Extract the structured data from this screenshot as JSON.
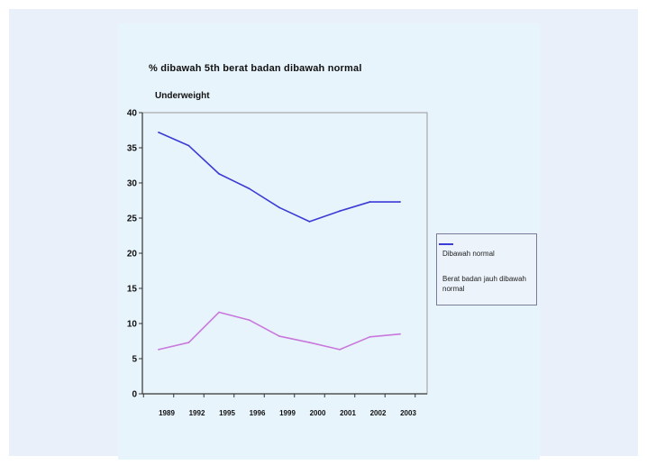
{
  "chart_data": {
    "type": "line",
    "title": "% dibawah 5th berat badan dibawah normal",
    "ylabel": "Underweight",
    "xlabel": "",
    "categories": [
      "1989",
      "1992",
      "1995",
      "1996",
      "1999",
      "2000",
      "2001",
      "2002",
      "2003"
    ],
    "ylim": [
      0,
      40
    ],
    "yticks": [
      0,
      5,
      10,
      15,
      20,
      25,
      30,
      35,
      40
    ],
    "grid": false,
    "legend_position": "right",
    "series": [
      {
        "name": "Dibawah normal",
        "color": "#3b3bd6",
        "x": [
          1,
          2,
          3,
          4,
          5,
          6,
          7,
          8,
          9
        ],
        "values": [
          37.2,
          35.3,
          31.3,
          29.2,
          26.5,
          24.5,
          26.0,
          27.3,
          27.3
        ]
      },
      {
        "name": "Berat badan jauh dibawah normal",
        "color": "#c878dc",
        "x": [
          1,
          2,
          3,
          4,
          5,
          6,
          7,
          8,
          9
        ],
        "values": [
          6.3,
          7.3,
          11.6,
          10.5,
          8.2,
          7.3,
          6.3,
          8.1,
          8.5
        ]
      }
    ]
  },
  "legend": {
    "items": [
      {
        "label": "Dibawah normal",
        "color": "#3b3bd6"
      },
      {
        "label": "Berat badan jauh dibawah normal",
        "color": "#c878dc"
      }
    ]
  }
}
